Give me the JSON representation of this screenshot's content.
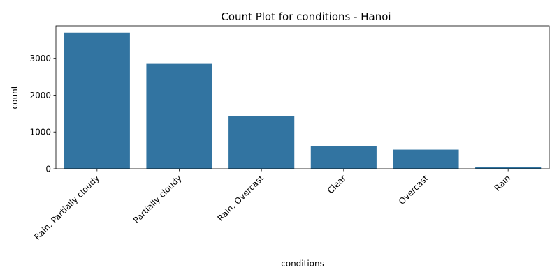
{
  "chart_data": {
    "type": "bar",
    "title": "Count Plot for conditions - Hanoi",
    "xlabel": "conditions",
    "ylabel": "count",
    "categories": [
      "Rain, Partially cloudy",
      "Partially cloudy",
      "Rain, Overcast",
      "Clear",
      "Overcast",
      "Rain"
    ],
    "values": [
      3700,
      2850,
      1430,
      620,
      520,
      40
    ],
    "ylim": [
      0,
      3885
    ],
    "yticks": [
      "0",
      "1000",
      "2000",
      "3000"
    ],
    "bar_color": "#3274a1",
    "grid": false,
    "legend": "none"
  }
}
